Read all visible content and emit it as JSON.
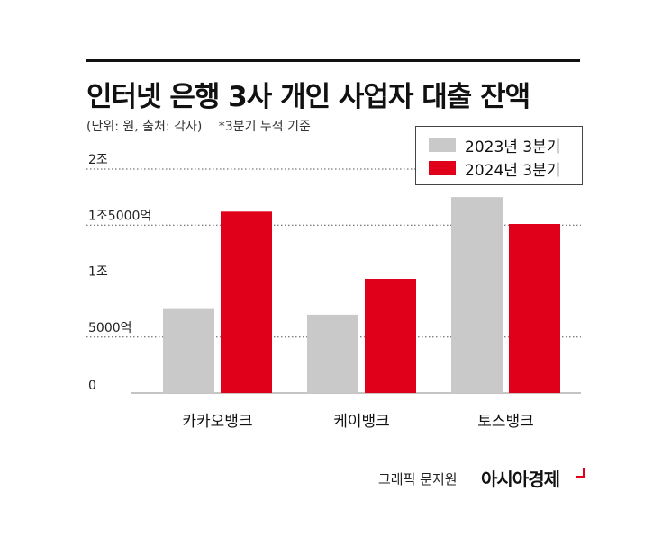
{
  "title": "인터넷 은행 3사 개인 사업자 대출 잔액",
  "subtitle": "(단위: 원, 출처: 각사)",
  "note": "*3분기 누적 기준",
  "credit": {
    "text": "그래픽 문지원",
    "brand": "아시아경제"
  },
  "colors": {
    "series_2023": "#c9c9c9",
    "series_2024": "#e0001a",
    "grid": "#555555"
  },
  "chart_data": {
    "type": "bar",
    "categories": [
      "카카오뱅크",
      "케이뱅크",
      "토스뱅크"
    ],
    "series": [
      {
        "name": "2023년 3분기",
        "values": [
          7500,
          7000,
          17500
        ]
      },
      {
        "name": "2024년 3분기",
        "values": [
          16200,
          10200,
          15100
        ]
      }
    ],
    "y_ticks": [
      {
        "value": 0,
        "label": "0"
      },
      {
        "value": 5000,
        "label": "5000억"
      },
      {
        "value": 10000,
        "label": "1조"
      },
      {
        "value": 15000,
        "label": "1조5000억"
      },
      {
        "value": 20000,
        "label": "2조"
      }
    ],
    "ylim": [
      0,
      20000
    ],
    "grid": true,
    "legend_position": "top-right"
  }
}
